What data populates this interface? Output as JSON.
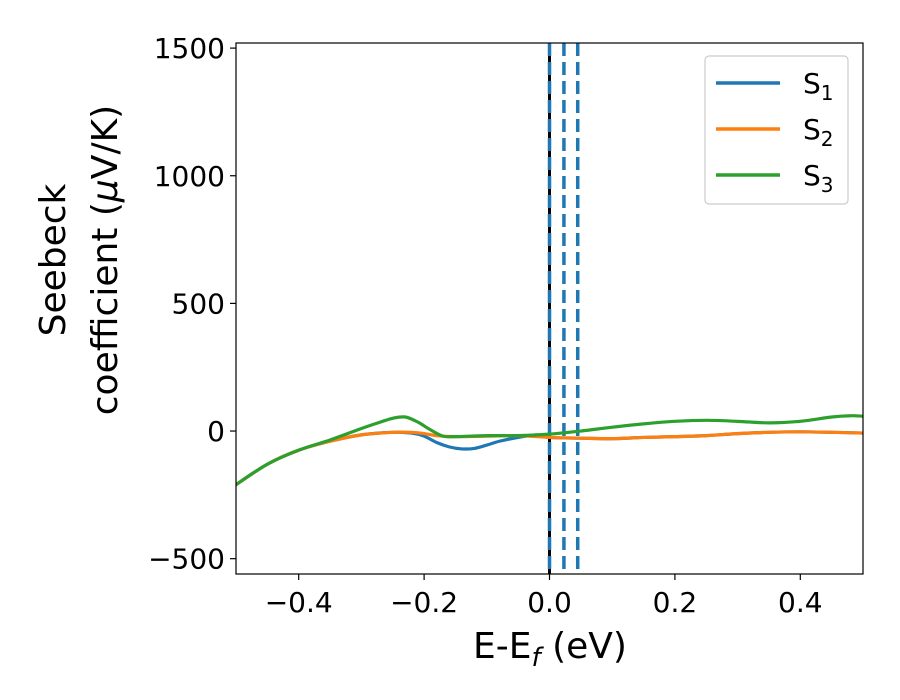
{
  "chart_data": {
    "type": "line",
    "xlabel_main": "E-E",
    "xlabel_sub": "f",
    "xlabel_unit": " (eV)",
    "ylabel_line1": "Seebeck",
    "ylabel_line2_text": "coefficient  (",
    "ylabel_line2_mu": "μ",
    "ylabel_line2_unit": "V/K)",
    "xlim": [
      -0.5,
      0.5
    ],
    "ylim": [
      -560,
      1520
    ],
    "xticks": [
      -0.4,
      -0.2,
      0.0,
      0.2,
      0.4
    ],
    "xtick_labels": [
      "−0.4",
      "−0.2",
      "0.0",
      "0.2",
      "0.4"
    ],
    "yticks": [
      -500,
      0,
      500,
      1000,
      1500
    ],
    "ytick_labels": [
      "−500",
      "0",
      "500",
      "1000",
      "1500"
    ],
    "grid": false,
    "legend_position": "top-right",
    "series": [
      {
        "name_base": "S",
        "name_sub": "1",
        "color": "#1f77b4",
        "x": [
          -0.5,
          -0.45,
          -0.4,
          -0.35,
          -0.3,
          -0.25,
          -0.22,
          -0.2,
          -0.18,
          -0.16,
          -0.14,
          -0.12,
          -0.1,
          -0.08,
          -0.05,
          -0.02,
          0.0,
          0.05,
          0.1,
          0.15,
          0.2,
          0.25,
          0.3,
          0.35,
          0.4,
          0.45,
          0.5
        ],
        "y": [
          -210,
          -130,
          -75,
          -40,
          -15,
          -5,
          -8,
          -20,
          -45,
          -62,
          -70,
          -68,
          -55,
          -40,
          -25,
          -15,
          -25,
          -28,
          -30,
          -25,
          -22,
          -18,
          -10,
          -5,
          -3,
          -5,
          -8
        ]
      },
      {
        "name_base": "S",
        "name_sub": "2",
        "color": "#ff7f0e",
        "x": [
          -0.5,
          -0.45,
          -0.4,
          -0.35,
          -0.3,
          -0.25,
          -0.22,
          -0.2,
          -0.18,
          -0.15,
          -0.1,
          -0.05,
          0.0,
          0.05,
          0.1,
          0.15,
          0.2,
          0.25,
          0.3,
          0.35,
          0.4,
          0.45,
          0.5
        ],
        "y": [
          -210,
          -130,
          -75,
          -40,
          -15,
          -5,
          -5,
          -10,
          -18,
          -22,
          -20,
          -18,
          -25,
          -28,
          -30,
          -25,
          -22,
          -18,
          -10,
          -5,
          -3,
          -5,
          -8
        ]
      },
      {
        "name_base": "S",
        "name_sub": "3",
        "color": "#2ca02c",
        "x": [
          -0.5,
          -0.45,
          -0.4,
          -0.35,
          -0.3,
          -0.27,
          -0.25,
          -0.23,
          -0.21,
          -0.19,
          -0.17,
          -0.15,
          -0.1,
          -0.05,
          0.0,
          0.05,
          0.1,
          0.15,
          0.2,
          0.25,
          0.3,
          0.35,
          0.4,
          0.45,
          0.48,
          0.5
        ],
        "y": [
          -210,
          -130,
          -75,
          -35,
          10,
          35,
          50,
          55,
          35,
          5,
          -20,
          -22,
          -18,
          -18,
          -12,
          0,
          15,
          28,
          38,
          42,
          38,
          32,
          38,
          55,
          60,
          58
        ]
      }
    ],
    "vlines": [
      {
        "x": 0.0,
        "color": "#000000",
        "style": "solid"
      },
      {
        "x": 0.0,
        "color": "#1f77b4",
        "style": "dashed"
      },
      {
        "x": 0.023,
        "color": "#1f77b4",
        "style": "dashed"
      },
      {
        "x": 0.045,
        "color": "#1f77b4",
        "style": "dashed"
      }
    ]
  }
}
